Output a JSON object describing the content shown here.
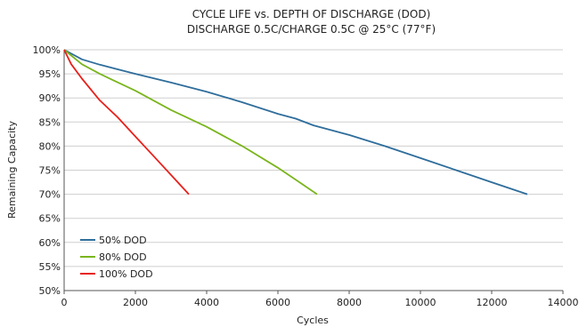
{
  "chart_data": {
    "type": "line",
    "title": "CYCLE LIFE vs. DEPTH OF DISCHARGE (DOD)",
    "subtitle": "DISCHARGE 0.5C/CHARGE 0.5C @ 25°C (77°F)",
    "xlabel": "Cycles",
    "ylabel": "Remaining Capacity",
    "xlim": [
      0,
      14000
    ],
    "ylim": [
      50,
      100
    ],
    "x_ticks": [
      0,
      2000,
      4000,
      6000,
      8000,
      10000,
      12000,
      14000
    ],
    "y_ticks": [
      50,
      55,
      60,
      65,
      70,
      75,
      80,
      85,
      90,
      95,
      100
    ],
    "y_tick_suffix": "%",
    "grid": "horizontal",
    "legend_position": "lower-left",
    "series": [
      {
        "name": "50% DOD",
        "color": "#2e6d9b",
        "x": [
          0,
          500,
          1000,
          2000,
          3000,
          4000,
          5000,
          6000,
          6500,
          7000,
          8000,
          9000,
          10000,
          11000,
          12000,
          13000
        ],
        "y": [
          100,
          98,
          96.9,
          95,
          93.2,
          91.3,
          89.1,
          86.7,
          85.7,
          84.3,
          82.3,
          80,
          77.5,
          75,
          72.5,
          70
        ]
      },
      {
        "name": "80% DOD",
        "color": "#7ab51d",
        "x": [
          0,
          500,
          1000,
          2000,
          3000,
          4000,
          5000,
          6000,
          6500,
          7100
        ],
        "y": [
          100,
          97,
          95,
          91.5,
          87.5,
          84,
          80,
          75.5,
          73,
          70
        ]
      },
      {
        "name": "100% DOD",
        "color": "#e8201b",
        "x": [
          0,
          200,
          500,
          1000,
          1500,
          2000,
          2500,
          3000,
          3500
        ],
        "y": [
          100,
          97,
          94,
          89.5,
          86,
          82,
          78,
          74,
          70
        ]
      }
    ]
  }
}
